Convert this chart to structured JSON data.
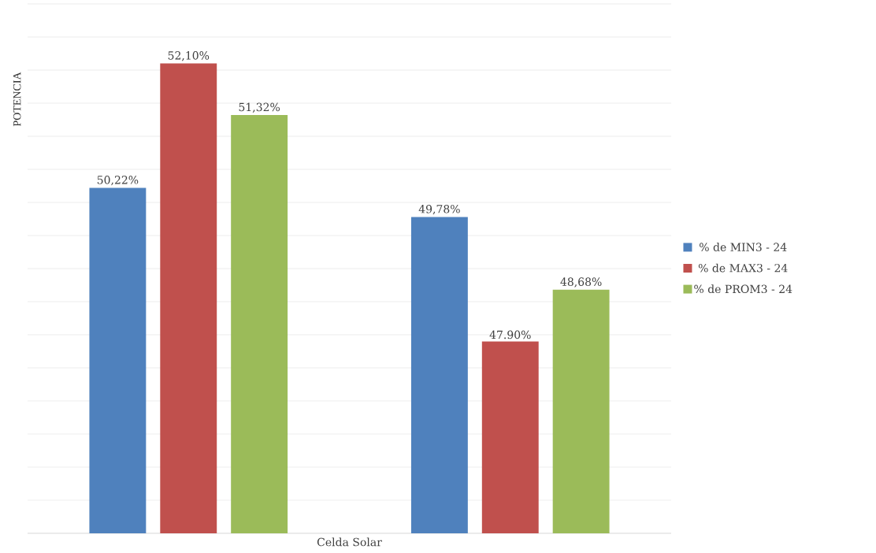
{
  "chart_data": {
    "type": "bar",
    "xlabel": "Celda Solar",
    "ylabel": "POTENCIA",
    "categories": [
      null,
      null
    ],
    "series": [
      {
        "name": "% de MIN3 - 24",
        "color": "#4f81bd",
        "values": [
          50.22,
          49.78
        ],
        "value_labels": [
          "50,22%",
          "49,78%"
        ]
      },
      {
        "name": "% de MAX3 - 24",
        "color": "#c0504d",
        "values": [
          52.1,
          47.9
        ],
        "value_labels": [
          "52,10%",
          "47.90%"
        ]
      },
      {
        "name": "% de PROM3 - 24",
        "color": "#9bbb59",
        "values": [
          51.32,
          48.68
        ],
        "value_labels": [
          "51,32%",
          "48,68%"
        ]
      }
    ],
    "ylim": [
      45,
      53
    ],
    "tick_labels": false,
    "grid": "y",
    "legend": "right"
  }
}
